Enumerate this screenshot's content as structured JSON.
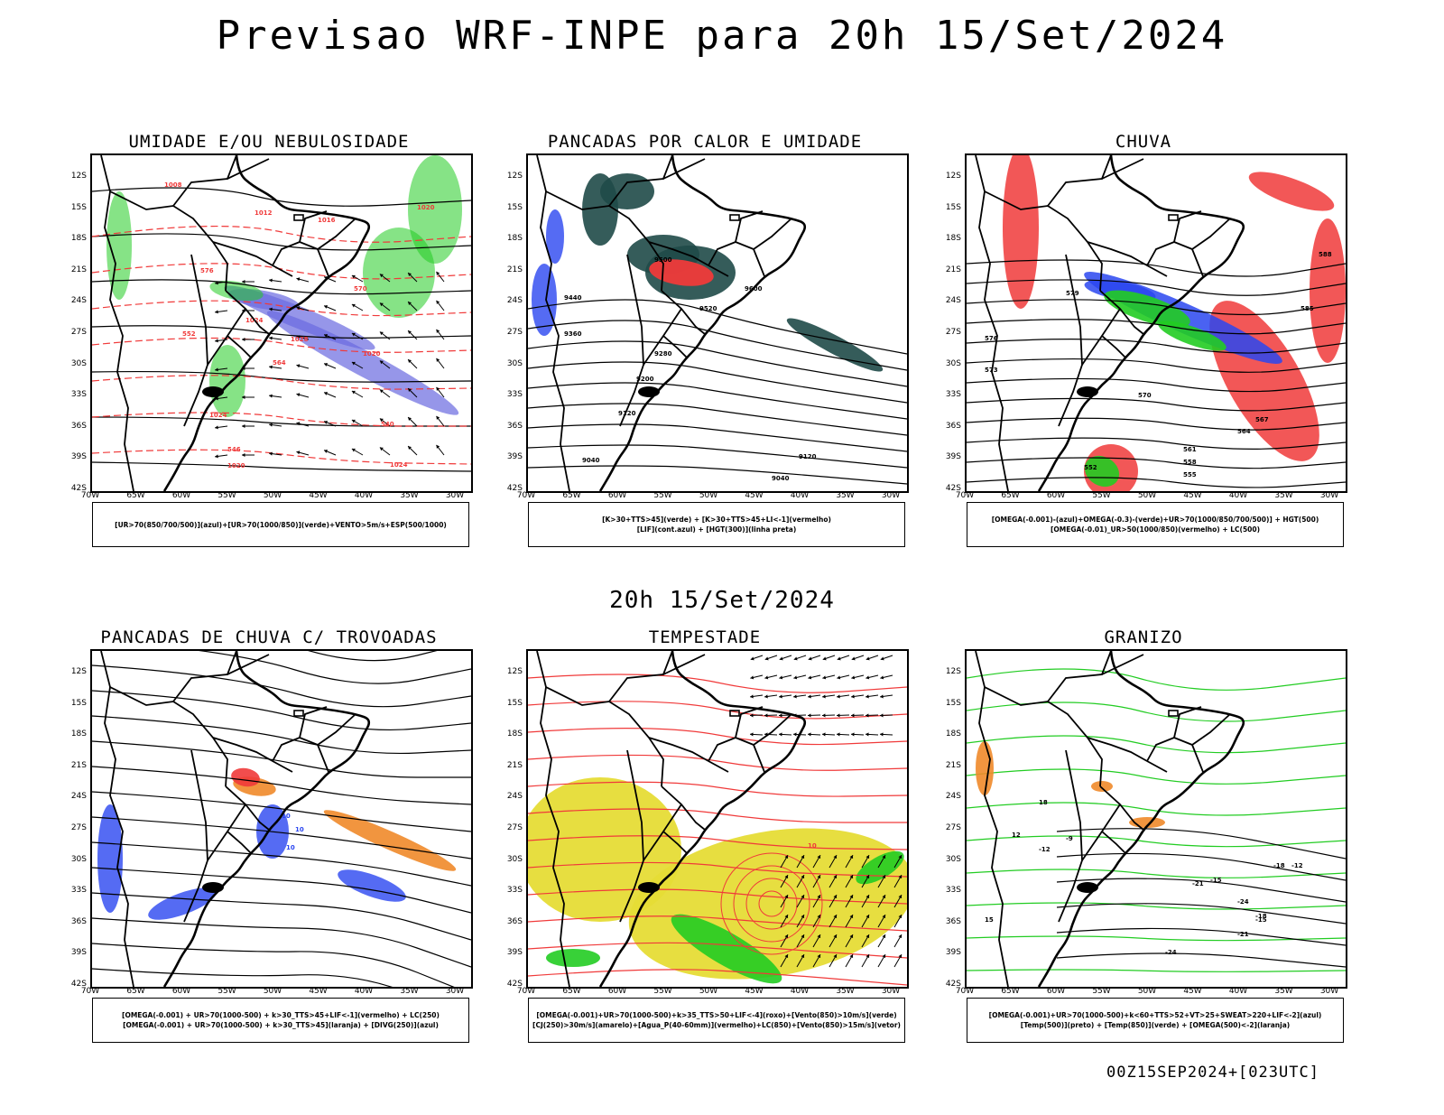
{
  "main_title": "Previsao WRF-INPE  para 20h 15/Set/2024",
  "mid_date": "20h 15/Set/2024",
  "footer": "00Z15SEP2024+[023UTC]",
  "lat_labels": [
    "12S",
    "15S",
    "18S",
    "21S",
    "24S",
    "27S",
    "30S",
    "33S",
    "36S",
    "39S",
    "42S"
  ],
  "lon_labels": [
    "70W",
    "65W",
    "60W",
    "55W",
    "50W",
    "45W",
    "40W",
    "35W",
    "30W"
  ],
  "colors": {
    "blue": "#2a46f0",
    "green": "#22cc22",
    "red": "#f03a3a",
    "orange": "#f08a2a",
    "yellow": "#e6dc36",
    "dark_teal": "#1f4a48",
    "violet": "#6a6ae0"
  },
  "panels": [
    {
      "id": "umidade",
      "title": "UMIDADE E/OU NEBULOSIDADE",
      "legend": [
        "[UR>70(850/700/500)](azul)+[UR>70(1000/850)](verde)+VENTO>5m/s+ESP(500/1000)"
      ],
      "contour_labels": [
        "1008",
        "1012",
        "1016",
        "1020",
        "1024",
        "1028",
        "1020",
        "1024",
        "1024",
        "1020",
        "552",
        "564",
        "570",
        "576",
        "540",
        "546"
      ]
    },
    {
      "id": "pancadas-calor",
      "title": "PANCADAS POR CALOR E UMIDADE",
      "legend": [
        "[K>30+TTS>45](verde) + [K>30+TTS>45+LI<-1](vermelho)",
        "[LIF](cont.azul) + [HGT(300)](linha preta)"
      ],
      "contour_labels": [
        "9500",
        "9600",
        "9520",
        "9440",
        "9360",
        "9280",
        "9200",
        "9120",
        "9040",
        "9120",
        "9040"
      ]
    },
    {
      "id": "chuva",
      "title": "CHUVA",
      "legend": [
        "[OMEGA(-0.001)-(azul)+OMEGA(-0.3)-(verde)+UR>70(1000/850/700/500)] + HGT(500)",
        "[OMEGA(-0.01)_UR>50(1000/850)(vermelho) + LC(500)"
      ],
      "contour_labels": [
        "588",
        "585",
        "579",
        "576",
        "573",
        "570",
        "567",
        "564",
        "561",
        "558",
        "555",
        "552"
      ]
    },
    {
      "id": "trovoadas",
      "title": "PANCADAS DE CHUVA C/ TROVOADAS",
      "legend": [
        "[OMEGA(-0.001) + UR>70(1000-500) + k>30_TTS>45+LIF<-1](vermelho) + LC(250)",
        "[OMEGA(-0.001) + UR>70(1000-500) + k>30_TTS>45](laranja) + [DIVG(250)](azul)"
      ],
      "contour_labels": [
        "10",
        "10",
        "10"
      ]
    },
    {
      "id": "tempestade",
      "title": "TEMPESTADE",
      "legend": [
        "[OMEGA(-0.001)+UR>70(1000-500)+k>35_TTS>50+LIF<-4](roxo)+[Vento(850)>10m/s](verde)",
        "[CJ(250)>30m/s](amarelo)+[Agua_P(40-60mm)](vermelho)+LC(850)+[Vento(850)>15m/s](vetor)"
      ],
      "contour_labels": [
        "10"
      ]
    },
    {
      "id": "granizo",
      "title": "GRANIZO",
      "legend": [
        "[OMEGA(-0.001)+UR>70(1000-500)+k<60+TTS>52+VT>25+SWEAT>220+LIF<-2](azul)",
        "[Temp(500)](preto) + [Temp(850)](verde) + [OMEGA(500)<-2](laranja)"
      ],
      "contour_labels": [
        "-9",
        "-12",
        "-15",
        "-18",
        "-21",
        "-24",
        "-15",
        "-12",
        "-18",
        "-21",
        "-24",
        "12",
        "15",
        "18"
      ]
    }
  ]
}
